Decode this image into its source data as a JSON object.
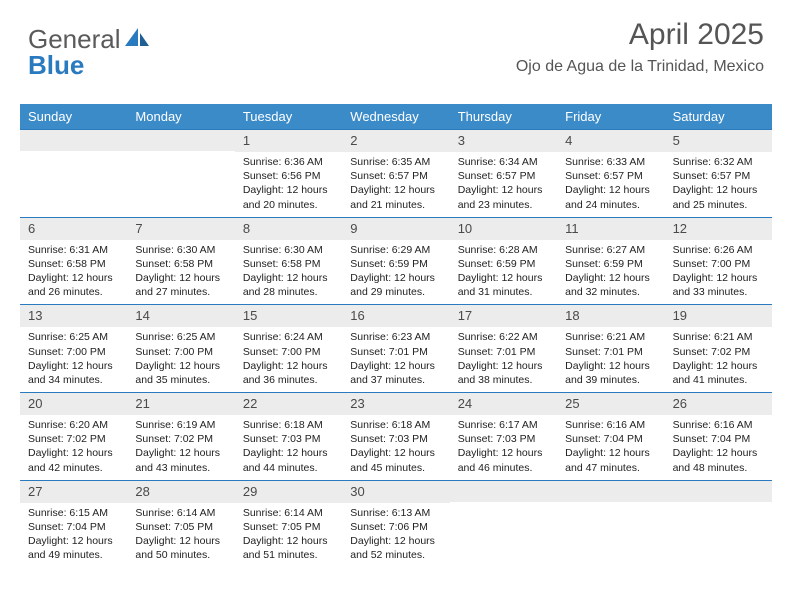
{
  "brand": {
    "part1": "General",
    "part2": "Blue"
  },
  "title": "April 2025",
  "subtitle": "Ojo de Agua de la Trinidad, Mexico",
  "colors": {
    "header_bg": "#3b8bc9",
    "header_text": "#ffffff",
    "week_border": "#2a7ac0",
    "daynum_bg": "#ececec",
    "daynum_text": "#4a4a4a",
    "body_text": "#222222",
    "logo_gray": "#5a5a5a",
    "logo_blue": "#2a7ac0"
  },
  "day_labels": [
    "Sunday",
    "Monday",
    "Tuesday",
    "Wednesday",
    "Thursday",
    "Friday",
    "Saturday"
  ],
  "weeks": [
    [
      {
        "n": "",
        "sr": "",
        "ss": "",
        "dl": ""
      },
      {
        "n": "",
        "sr": "",
        "ss": "",
        "dl": ""
      },
      {
        "n": "1",
        "sr": "Sunrise: 6:36 AM",
        "ss": "Sunset: 6:56 PM",
        "dl": "Daylight: 12 hours and 20 minutes."
      },
      {
        "n": "2",
        "sr": "Sunrise: 6:35 AM",
        "ss": "Sunset: 6:57 PM",
        "dl": "Daylight: 12 hours and 21 minutes."
      },
      {
        "n": "3",
        "sr": "Sunrise: 6:34 AM",
        "ss": "Sunset: 6:57 PM",
        "dl": "Daylight: 12 hours and 23 minutes."
      },
      {
        "n": "4",
        "sr": "Sunrise: 6:33 AM",
        "ss": "Sunset: 6:57 PM",
        "dl": "Daylight: 12 hours and 24 minutes."
      },
      {
        "n": "5",
        "sr": "Sunrise: 6:32 AM",
        "ss": "Sunset: 6:57 PM",
        "dl": "Daylight: 12 hours and 25 minutes."
      }
    ],
    [
      {
        "n": "6",
        "sr": "Sunrise: 6:31 AM",
        "ss": "Sunset: 6:58 PM",
        "dl": "Daylight: 12 hours and 26 minutes."
      },
      {
        "n": "7",
        "sr": "Sunrise: 6:30 AM",
        "ss": "Sunset: 6:58 PM",
        "dl": "Daylight: 12 hours and 27 minutes."
      },
      {
        "n": "8",
        "sr": "Sunrise: 6:30 AM",
        "ss": "Sunset: 6:58 PM",
        "dl": "Daylight: 12 hours and 28 minutes."
      },
      {
        "n": "9",
        "sr": "Sunrise: 6:29 AM",
        "ss": "Sunset: 6:59 PM",
        "dl": "Daylight: 12 hours and 29 minutes."
      },
      {
        "n": "10",
        "sr": "Sunrise: 6:28 AM",
        "ss": "Sunset: 6:59 PM",
        "dl": "Daylight: 12 hours and 31 minutes."
      },
      {
        "n": "11",
        "sr": "Sunrise: 6:27 AM",
        "ss": "Sunset: 6:59 PM",
        "dl": "Daylight: 12 hours and 32 minutes."
      },
      {
        "n": "12",
        "sr": "Sunrise: 6:26 AM",
        "ss": "Sunset: 7:00 PM",
        "dl": "Daylight: 12 hours and 33 minutes."
      }
    ],
    [
      {
        "n": "13",
        "sr": "Sunrise: 6:25 AM",
        "ss": "Sunset: 7:00 PM",
        "dl": "Daylight: 12 hours and 34 minutes."
      },
      {
        "n": "14",
        "sr": "Sunrise: 6:25 AM",
        "ss": "Sunset: 7:00 PM",
        "dl": "Daylight: 12 hours and 35 minutes."
      },
      {
        "n": "15",
        "sr": "Sunrise: 6:24 AM",
        "ss": "Sunset: 7:00 PM",
        "dl": "Daylight: 12 hours and 36 minutes."
      },
      {
        "n": "16",
        "sr": "Sunrise: 6:23 AM",
        "ss": "Sunset: 7:01 PM",
        "dl": "Daylight: 12 hours and 37 minutes."
      },
      {
        "n": "17",
        "sr": "Sunrise: 6:22 AM",
        "ss": "Sunset: 7:01 PM",
        "dl": "Daylight: 12 hours and 38 minutes."
      },
      {
        "n": "18",
        "sr": "Sunrise: 6:21 AM",
        "ss": "Sunset: 7:01 PM",
        "dl": "Daylight: 12 hours and 39 minutes."
      },
      {
        "n": "19",
        "sr": "Sunrise: 6:21 AM",
        "ss": "Sunset: 7:02 PM",
        "dl": "Daylight: 12 hours and 41 minutes."
      }
    ],
    [
      {
        "n": "20",
        "sr": "Sunrise: 6:20 AM",
        "ss": "Sunset: 7:02 PM",
        "dl": "Daylight: 12 hours and 42 minutes."
      },
      {
        "n": "21",
        "sr": "Sunrise: 6:19 AM",
        "ss": "Sunset: 7:02 PM",
        "dl": "Daylight: 12 hours and 43 minutes."
      },
      {
        "n": "22",
        "sr": "Sunrise: 6:18 AM",
        "ss": "Sunset: 7:03 PM",
        "dl": "Daylight: 12 hours and 44 minutes."
      },
      {
        "n": "23",
        "sr": "Sunrise: 6:18 AM",
        "ss": "Sunset: 7:03 PM",
        "dl": "Daylight: 12 hours and 45 minutes."
      },
      {
        "n": "24",
        "sr": "Sunrise: 6:17 AM",
        "ss": "Sunset: 7:03 PM",
        "dl": "Daylight: 12 hours and 46 minutes."
      },
      {
        "n": "25",
        "sr": "Sunrise: 6:16 AM",
        "ss": "Sunset: 7:04 PM",
        "dl": "Daylight: 12 hours and 47 minutes."
      },
      {
        "n": "26",
        "sr": "Sunrise: 6:16 AM",
        "ss": "Sunset: 7:04 PM",
        "dl": "Daylight: 12 hours and 48 minutes."
      }
    ],
    [
      {
        "n": "27",
        "sr": "Sunrise: 6:15 AM",
        "ss": "Sunset: 7:04 PM",
        "dl": "Daylight: 12 hours and 49 minutes."
      },
      {
        "n": "28",
        "sr": "Sunrise: 6:14 AM",
        "ss": "Sunset: 7:05 PM",
        "dl": "Daylight: 12 hours and 50 minutes."
      },
      {
        "n": "29",
        "sr": "Sunrise: 6:14 AM",
        "ss": "Sunset: 7:05 PM",
        "dl": "Daylight: 12 hours and 51 minutes."
      },
      {
        "n": "30",
        "sr": "Sunrise: 6:13 AM",
        "ss": "Sunset: 7:06 PM",
        "dl": "Daylight: 12 hours and 52 minutes."
      },
      {
        "n": "",
        "sr": "",
        "ss": "",
        "dl": ""
      },
      {
        "n": "",
        "sr": "",
        "ss": "",
        "dl": ""
      },
      {
        "n": "",
        "sr": "",
        "ss": "",
        "dl": ""
      }
    ]
  ]
}
